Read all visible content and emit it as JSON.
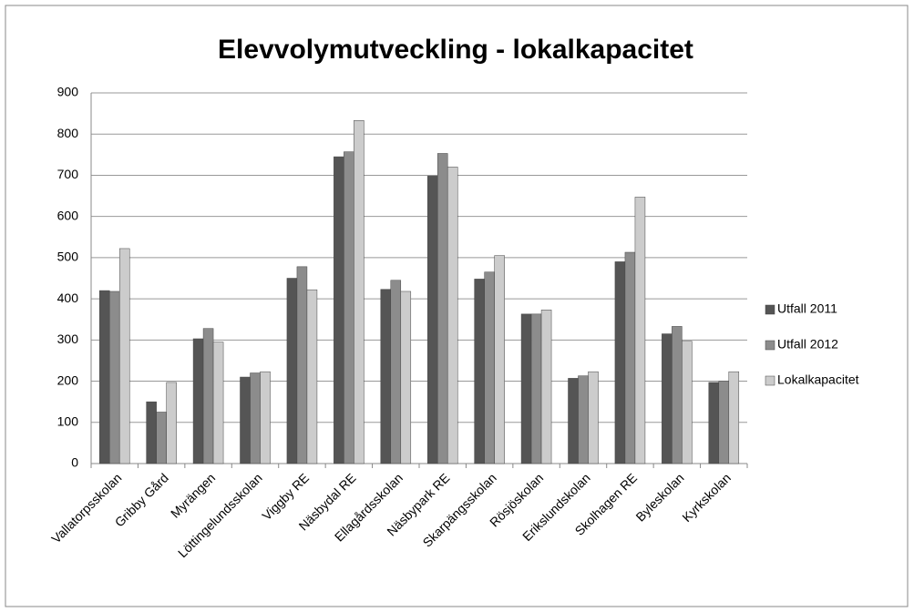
{
  "chart_data": {
    "type": "bar",
    "title": "Elevvolymutveckling - lokalkapacitet",
    "categories": [
      "Vallatorpsskolan",
      "Gribby Gård",
      "Myrängen",
      "Löttingelundsskolan",
      "Viggby RE",
      "Näsbydal RE",
      "Ellagårdsskolan",
      "Näsbypark RE",
      "Skarpängsskolan",
      "Rösjöskolan",
      "Erikslundskolan",
      "Skolhagen RE",
      "Byleskolan",
      "Kyrkskolan"
    ],
    "series": [
      {
        "name": "Utfall 2011",
        "color": "#555555",
        "values": [
          420,
          150,
          303,
          210,
          450,
          745,
          423,
          698,
          448,
          363,
          207,
          490,
          315,
          197
        ]
      },
      {
        "name": "Utfall 2012",
        "color": "#8c8c8c",
        "values": [
          418,
          125,
          328,
          220,
          478,
          757,
          445,
          753,
          465,
          363,
          213,
          513,
          333,
          200
        ]
      },
      {
        "name": "Lokalkapacitet",
        "color": "#cccccc",
        "values": [
          522,
          197,
          295,
          223,
          422,
          833,
          418,
          720,
          505,
          373,
          223,
          647,
          297,
          223
        ]
      }
    ],
    "ylim": [
      0,
      900
    ],
    "yticks": [
      0,
      100,
      200,
      300,
      400,
      500,
      600,
      700,
      800,
      900
    ],
    "grid": true,
    "legend": "right"
  }
}
